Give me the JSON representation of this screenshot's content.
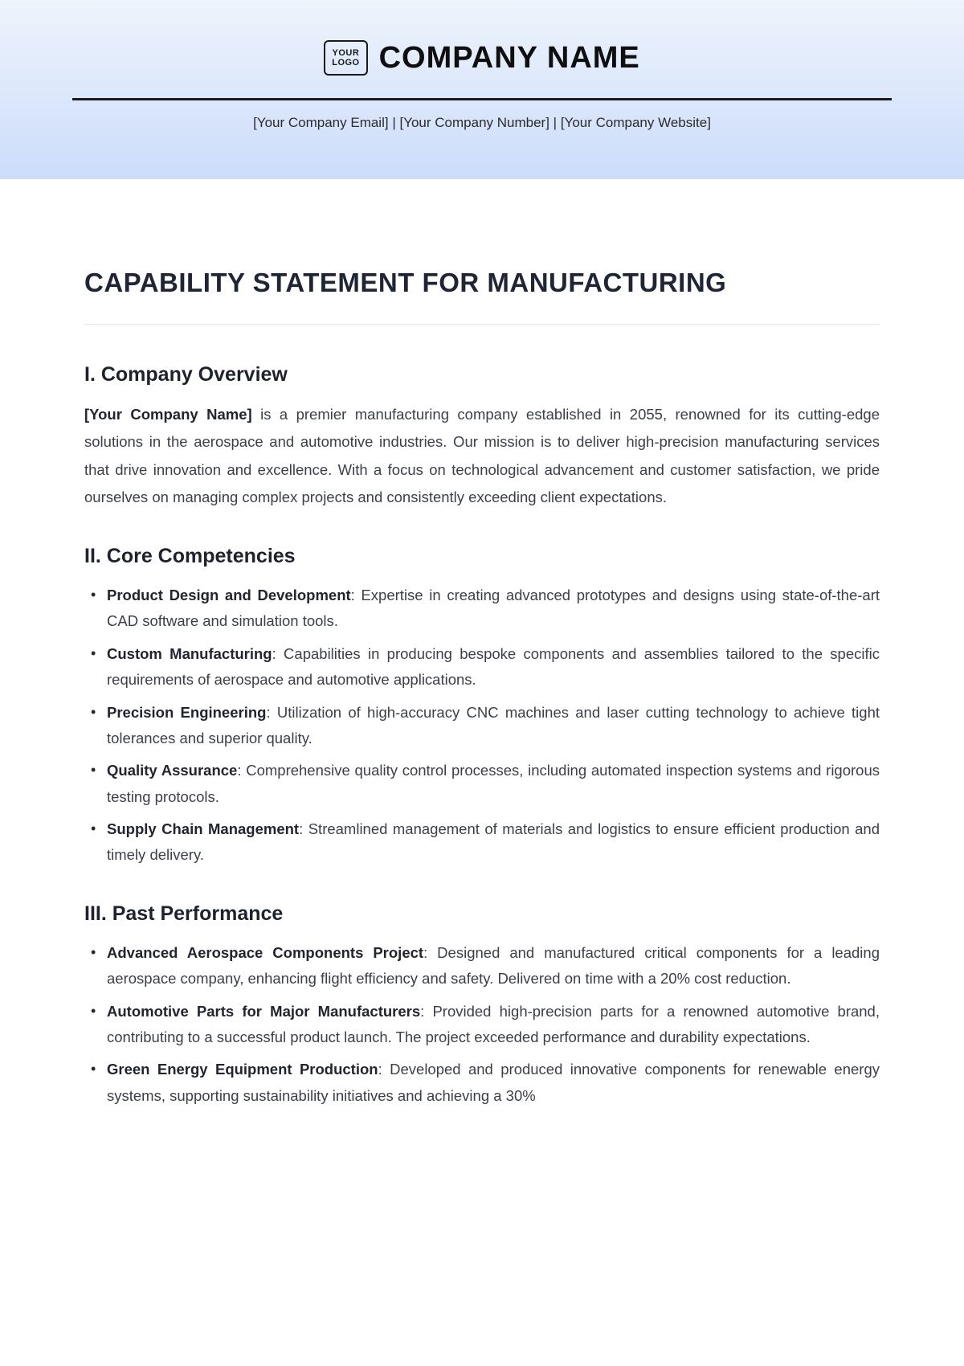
{
  "header": {
    "logo_text_l1": "YOUR",
    "logo_text_l2": "LOGO",
    "company_name": "COMPANY NAME",
    "contact_email": "[Your Company Email]",
    "contact_number": "[Your Company Number]",
    "contact_website": "[Your Company Website]",
    "separator": " | "
  },
  "doc_title": "CAPABILITY STATEMENT FOR MANUFACTURING",
  "section1": {
    "heading": "I. Company Overview",
    "bold_lead": "[Your Company Name]",
    "body": " is a premier manufacturing company established in 2055, renowned for its cutting-edge solutions in the aerospace and automotive industries. Our mission is to deliver high-precision manufacturing services that drive innovation and excellence. With a focus on technological advancement and customer satisfaction, we pride ourselves on managing complex projects and consistently exceeding client expectations."
  },
  "section2": {
    "heading": "II. Core Competencies",
    "items": [
      {
        "bold": "Product Design and Development",
        "rest": ": Expertise in creating advanced prototypes and designs using state-of-the-art CAD software and simulation tools."
      },
      {
        "bold": "Custom Manufacturing",
        "rest": ": Capabilities in producing bespoke components and assemblies tailored to the specific requirements of aerospace and automotive applications."
      },
      {
        "bold": "Precision Engineering",
        "rest": ": Utilization of high-accuracy CNC machines and laser cutting technology to achieve tight tolerances and superior quality."
      },
      {
        "bold": "Quality Assurance",
        "rest": ": Comprehensive quality control processes, including automated inspection systems and rigorous testing protocols."
      },
      {
        "bold": "Supply Chain Management",
        "rest": ": Streamlined management of materials and logistics to ensure efficient production and timely delivery."
      }
    ]
  },
  "section3": {
    "heading": "III. Past Performance",
    "items": [
      {
        "bold": "Advanced Aerospace Components Project",
        "rest": ": Designed and manufactured critical components for a leading aerospace company, enhancing flight efficiency and safety. Delivered on time with a 20% cost reduction."
      },
      {
        "bold": "Automotive Parts for Major Manufacturers",
        "rest": ": Provided high-precision parts for a renowned automotive brand, contributing to a successful product launch. The project exceeded performance and durability expectations."
      },
      {
        "bold": "Green Energy Equipment Production",
        "rest": ": Developed and produced innovative components for renewable energy systems, supporting sustainability initiatives and achieving a 30%"
      }
    ]
  },
  "colors": {
    "header_gradient_top": "#eef4fc",
    "header_gradient_bottom": "#ccdcfa",
    "text_primary": "#1f2535",
    "text_body": "#3b3f48",
    "rule_dark": "#1a1a1a",
    "rule_light": "#e5e5e5"
  },
  "typography": {
    "company_name_size": 38,
    "doc_title_size": 33,
    "section_heading_size": 25,
    "body_size": 18.5
  }
}
